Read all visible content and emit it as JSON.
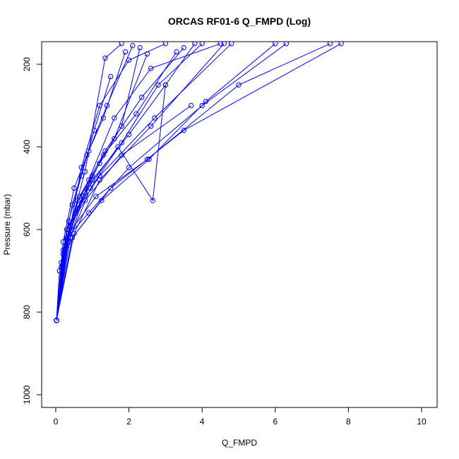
{
  "chart_data": {
    "type": "line",
    "title": "ORCAS RF01-6 Q_FMPD (Log)",
    "xlabel": "Q_FMPD",
    "ylabel": "Pressure (mbar)",
    "xlim": [
      0,
      10
    ],
    "ylim": [
      1000,
      150
    ],
    "y_reversed": true,
    "xticks": [
      0,
      2,
      4,
      6,
      8,
      10
    ],
    "yticks": [
      200,
      400,
      600,
      800,
      1000
    ],
    "grid": false,
    "legend": "none",
    "series_color": "#0000FF",
    "marker": "open-circle",
    "series": [
      {
        "x": [
          0.02,
          0.3,
          0.7,
          1.2,
          2.0,
          3.0
        ],
        "y": [
          820,
          640,
          450,
          300,
          190,
          150
        ]
      },
      {
        "x": [
          0.02,
          0.4,
          0.9,
          1.6,
          2.6,
          4.5
        ],
        "y": [
          820,
          620,
          480,
          330,
          210,
          150
        ]
      },
      {
        "x": [
          0.02,
          0.2,
          0.5,
          0.9,
          1.4,
          2.1
        ],
        "y": [
          820,
          630,
          500,
          410,
          300,
          155
        ]
      },
      {
        "x": [
          0.02,
          0.3,
          0.8,
          1.8,
          3.7
        ],
        "y": [
          820,
          600,
          530,
          420,
          300
        ]
      },
      {
        "x": [
          0.02,
          0.35,
          1.1,
          2.5,
          5.0,
          7.5
        ],
        "y": [
          820,
          610,
          520,
          430,
          250,
          150
        ]
      },
      {
        "x": [
          0.02,
          0.45,
          1.5,
          3.5,
          7.8
        ],
        "y": [
          820,
          620,
          500,
          360,
          150
        ]
      },
      {
        "x": [
          0.02,
          0.25,
          0.6,
          1.2,
          2.7,
          4.8
        ],
        "y": [
          820,
          650,
          550,
          470,
          330,
          150
        ]
      },
      {
        "x": [
          0.02,
          0.3,
          0.9,
          2.0,
          4.0,
          6.3
        ],
        "y": [
          820,
          620,
          560,
          450,
          300,
          150
        ]
      },
      {
        "x": [
          0.02,
          0.15,
          0.45,
          0.85,
          1.3,
          1.9
        ],
        "y": [
          820,
          680,
          540,
          420,
          330,
          170
        ]
      },
      {
        "x": [
          0.02,
          0.1,
          0.35,
          0.7,
          1.05,
          1.5
        ],
        "y": [
          820,
          700,
          580,
          470,
          360,
          230
        ]
      },
      {
        "x": [
          0.02,
          0.2,
          0.55,
          1.0,
          1.6,
          2.5
        ],
        "y": [
          820,
          660,
          560,
          470,
          380,
          175
        ]
      },
      {
        "x": [
          0.02,
          0.4,
          1.0,
          2.0,
          3.0,
          3.8
        ],
        "y": [
          820,
          590,
          480,
          370,
          250,
          150
        ]
      },
      {
        "x": [
          0.02,
          0.3,
          0.75,
          1.3,
          2.2,
          3.3
        ],
        "y": [
          820,
          625,
          520,
          420,
          320,
          170
        ]
      },
      {
        "x": [
          0.02,
          0.5,
          1.2,
          2.6,
          4.6
        ],
        "y": [
          820,
          610,
          480,
          350,
          150
        ]
      },
      {
        "x": [
          0.02,
          0.35,
          0.95,
          1.8,
          2.8,
          4.0
        ],
        "y": [
          820,
          630,
          500,
          390,
          250,
          150
        ]
      },
      {
        "x": [
          0.02,
          0.25,
          0.65,
          1.35,
          2.35,
          3.5
        ],
        "y": [
          820,
          640,
          520,
          410,
          280,
          160
        ]
      },
      {
        "x": [
          0.02,
          0.45,
          1.25,
          2.55,
          4.1,
          6.0
        ],
        "y": [
          820,
          620,
          530,
          430,
          290,
          150
        ]
      },
      {
        "x": [
          0.02,
          0.3,
          0.8,
          1.7,
          2.65,
          3.0
        ],
        "y": [
          820,
          600,
          510,
          400,
          530,
          250
        ]
      },
      {
        "x": [
          0.02,
          0.2,
          0.6,
          1.2,
          1.8,
          2.3
        ],
        "y": [
          820,
          650,
          530,
          440,
          350,
          160
        ]
      },
      {
        "x": [
          0.02,
          0.15,
          0.4,
          0.8,
          1.35,
          1.8
        ],
        "y": [
          820,
          690,
          590,
          460,
          185,
          150
        ]
      }
    ]
  }
}
